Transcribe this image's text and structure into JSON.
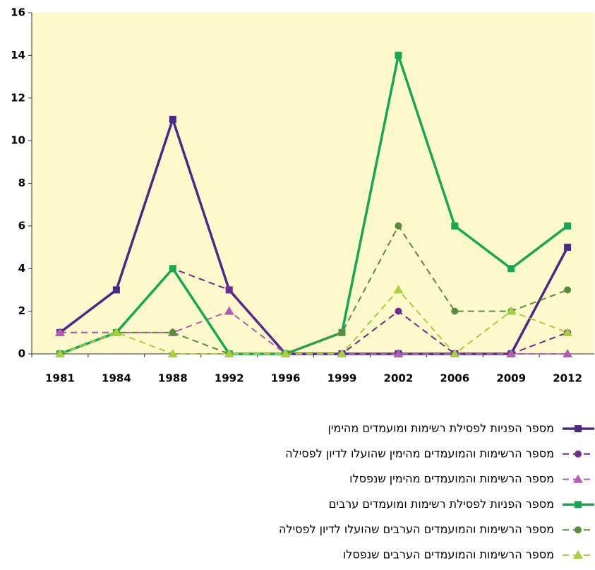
{
  "chart_data": {
    "type": "line",
    "categories": [
      "1981",
      "1984",
      "1988",
      "1992",
      "1996",
      "1999",
      "2002",
      "2006",
      "2009",
      "2012"
    ],
    "ylim": [
      0,
      16
    ],
    "yticks": [
      0,
      2,
      4,
      6,
      8,
      10,
      12,
      14,
      16
    ],
    "grid": false,
    "series": [
      {
        "name": "מספר הפניות לפסילת רשימות ומועמדים מהימין",
        "color": "#4b2888",
        "dashed": false,
        "marker": "square",
        "values": [
          1,
          3,
          11,
          3,
          0,
          0,
          0,
          0,
          0,
          5
        ]
      },
      {
        "name": "מספר הרשימות והמועמדים מהימין שהועלו לדיון לפסילה",
        "color": "#6d2c8e",
        "dashed": true,
        "marker": "circle",
        "values": [
          1,
          1,
          4,
          3,
          0,
          0,
          2,
          0,
          0,
          1
        ]
      },
      {
        "name": "מספר הרשימות והמועמדים מהימין שנפסלו",
        "color": "#b25cb4",
        "dashed": true,
        "marker": "triangle",
        "values": [
          1,
          1,
          1,
          2,
          0,
          0,
          0,
          0,
          0,
          0
        ]
      },
      {
        "name": "מספר הפניות לפסילת רשימות ומועמדים ערבים",
        "color": "#16a752",
        "dashed": false,
        "marker": "square",
        "values": [
          0,
          1,
          4,
          0,
          0,
          1,
          14,
          6,
          4,
          6
        ]
      },
      {
        "name": "מספר הרשימות והמועמדים הערבים שהועלו לדיון לפסילה",
        "color": "#5a8c3c",
        "dashed": true,
        "marker": "circle",
        "values": [
          0,
          1,
          1,
          0,
          0,
          1,
          6,
          2,
          2,
          3
        ]
      },
      {
        "name": "מספר הרשימות והמועמדים הערבים שנפסלו",
        "color": "#a6d040",
        "dashed": true,
        "marker": "triangle",
        "values": [
          0,
          1,
          0,
          0,
          0,
          0,
          3,
          0,
          2,
          1
        ]
      }
    ]
  }
}
